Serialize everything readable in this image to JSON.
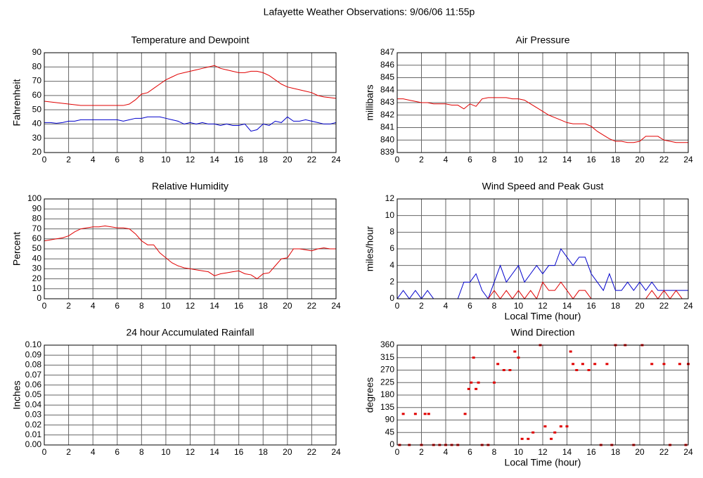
{
  "title": "Lafayette Weather Observations: 9/06/06 11:55p",
  "chart_data": [
    {
      "type": "line",
      "title": "Temperature and Dewpoint",
      "ylabel": "Fahrenheit",
      "x": [
        0,
        0.5,
        1,
        1.5,
        2,
        2.5,
        3,
        3.5,
        4,
        4.5,
        5,
        5.5,
        6,
        6.5,
        7,
        7.5,
        8,
        8.5,
        9,
        9.5,
        10,
        10.5,
        11,
        11.5,
        12,
        12.5,
        13,
        13.5,
        14,
        14.5,
        15,
        15.5,
        16,
        16.5,
        17,
        17.5,
        18,
        18.5,
        19,
        19.5,
        20,
        20.5,
        21,
        21.5,
        22,
        22.5,
        23,
        23.5,
        24
      ],
      "series": [
        {
          "color": "#e00000",
          "values": [
            56,
            55.5,
            55,
            54.5,
            54,
            53.5,
            53,
            53,
            53,
            53,
            53,
            53,
            53,
            53,
            54,
            57,
            61,
            62,
            65,
            68,
            71,
            73,
            75,
            76,
            77,
            78,
            79,
            80,
            81,
            79,
            78,
            77,
            76,
            76,
            77,
            77,
            76,
            74,
            71,
            68,
            66,
            65,
            64,
            63,
            62,
            60,
            59,
            58.5,
            58
          ]
        },
        {
          "color": "#0000cc",
          "values": [
            41,
            41,
            40.5,
            41,
            42,
            42,
            43,
            43,
            43,
            43,
            43,
            43,
            43,
            42,
            43,
            44,
            44,
            45,
            45,
            45,
            44,
            43,
            42,
            40,
            41,
            40,
            41,
            40,
            40,
            39,
            40,
            39,
            39,
            40,
            35,
            36,
            40,
            39,
            42,
            41,
            45,
            42,
            42,
            43,
            42,
            41,
            40,
            40,
            41
          ]
        }
      ],
      "xlim": [
        0,
        24
      ],
      "xticks": [
        0,
        2,
        4,
        6,
        8,
        10,
        12,
        14,
        16,
        18,
        20,
        22,
        24
      ],
      "ylim": [
        20,
        90
      ],
      "yticks": [
        20,
        30,
        40,
        50,
        60,
        70,
        80,
        90
      ],
      "grid": true
    },
    {
      "type": "line",
      "title": "Air Pressure",
      "ylabel": "millibars",
      "x": [
        0,
        0.5,
        1,
        1.5,
        2,
        2.5,
        3,
        3.5,
        4,
        4.5,
        5,
        5.5,
        6,
        6.5,
        7,
        7.5,
        8,
        8.5,
        9,
        9.5,
        10,
        10.5,
        11,
        11.5,
        12,
        12.5,
        13,
        13.5,
        14,
        14.5,
        15,
        15.5,
        16,
        16.5,
        17,
        17.5,
        18,
        18.5,
        19,
        19.5,
        20,
        20.5,
        21,
        21.5,
        22,
        22.5,
        23,
        23.5,
        24
      ],
      "series": [
        {
          "color": "#e00000",
          "values": [
            843.3,
            843.3,
            843.2,
            843.1,
            843.0,
            843.0,
            842.9,
            842.9,
            842.9,
            842.8,
            842.8,
            842.5,
            842.9,
            842.7,
            843.3,
            843.4,
            843.4,
            843.4,
            843.4,
            843.3,
            843.3,
            843.2,
            842.9,
            842.6,
            842.3,
            842.0,
            841.8,
            841.6,
            841.4,
            841.3,
            841.3,
            841.3,
            841.1,
            840.7,
            840.4,
            840.1,
            839.9,
            839.9,
            839.8,
            839.8,
            839.9,
            840.3,
            840.3,
            840.3,
            840.0,
            839.9,
            839.8,
            839.8,
            839.8
          ]
        }
      ],
      "xlim": [
        0,
        24
      ],
      "xticks": [
        0,
        2,
        4,
        6,
        8,
        10,
        12,
        14,
        16,
        18,
        20,
        22,
        24
      ],
      "ylim": [
        839,
        847
      ],
      "yticks": [
        839,
        840,
        841,
        842,
        843,
        844,
        845,
        846,
        847
      ],
      "grid": true
    },
    {
      "type": "line",
      "title": "Relative Humidity",
      "ylabel": "Percent",
      "x": [
        0,
        0.5,
        1,
        1.5,
        2,
        2.5,
        3,
        3.5,
        4,
        4.5,
        5,
        5.5,
        6,
        6.5,
        7,
        7.5,
        8,
        8.5,
        9,
        9.5,
        10,
        10.5,
        11,
        11.5,
        12,
        12.5,
        13,
        13.5,
        14,
        14.5,
        15,
        15.5,
        16,
        16.5,
        17,
        17.5,
        18,
        18.5,
        19,
        19.5,
        20,
        20.5,
        21,
        21.5,
        22,
        22.5,
        23,
        23.5,
        24
      ],
      "series": [
        {
          "color": "#e00000",
          "values": [
            58,
            59,
            60,
            61,
            63,
            67,
            70,
            71,
            72,
            72,
            73,
            72,
            71,
            71,
            70,
            65,
            58,
            54,
            54,
            46,
            41,
            36,
            33,
            31,
            30,
            29,
            28,
            27,
            23,
            25,
            26,
            27,
            28,
            25,
            24,
            20,
            25,
            26,
            33,
            40,
            41,
            50,
            50,
            49,
            48,
            50,
            51,
            50,
            50
          ]
        }
      ],
      "xlim": [
        0,
        24
      ],
      "xticks": [
        0,
        2,
        4,
        6,
        8,
        10,
        12,
        14,
        16,
        18,
        20,
        22,
        24
      ],
      "ylim": [
        0,
        100
      ],
      "yticks": [
        0,
        10,
        20,
        30,
        40,
        50,
        60,
        70,
        80,
        90,
        100
      ],
      "grid": true
    },
    {
      "type": "line",
      "title": "Wind Speed and Peak Gust",
      "ylabel": "miles/hour",
      "xlabel": "Local Time (hour)",
      "x": [
        0,
        0.5,
        1,
        1.5,
        2,
        2.5,
        3,
        3.5,
        4,
        4.5,
        5,
        5.5,
        6,
        6.5,
        7,
        7.5,
        8,
        8.5,
        9,
        9.5,
        10,
        10.5,
        11,
        11.5,
        12,
        12.5,
        13,
        13.5,
        14,
        14.5,
        15,
        15.5,
        16,
        16.5,
        17,
        17.5,
        18,
        18.5,
        19,
        19.5,
        20,
        20.5,
        21,
        21.5,
        22,
        22.5,
        23,
        23.5,
        24
      ],
      "series": [
        {
          "color": "#0000cc",
          "values": [
            0,
            1,
            0,
            1,
            0,
            1,
            0,
            0,
            0,
            0,
            0,
            2,
            2,
            3,
            1,
            0,
            2,
            4,
            2,
            3,
            4,
            2,
            3,
            4,
            3,
            4,
            4,
            6,
            5,
            4,
            5,
            5,
            3,
            2,
            1,
            3,
            1,
            1,
            2,
            1,
            2,
            1,
            2,
            1,
            1,
            1,
            1,
            1,
            1
          ]
        },
        {
          "color": "#e00000",
          "values": [
            0,
            0,
            0,
            0,
            0,
            0,
            0,
            0,
            0,
            0,
            0,
            0,
            0,
            0,
            0,
            0,
            1,
            0,
            1,
            0,
            1,
            0,
            1,
            0,
            2,
            1,
            1,
            2,
            1,
            0,
            1,
            1,
            0,
            0,
            0,
            0,
            0,
            0,
            0,
            0,
            0,
            0,
            1,
            0,
            1,
            0,
            1,
            0,
            0
          ]
        }
      ],
      "xlim": [
        0,
        24
      ],
      "xticks": [
        0,
        2,
        4,
        6,
        8,
        10,
        12,
        14,
        16,
        18,
        20,
        22,
        24
      ],
      "ylim": [
        0,
        12
      ],
      "yticks": [
        0,
        2,
        4,
        6,
        8,
        10,
        12
      ],
      "grid": true
    },
    {
      "type": "line",
      "title": "24 hour Accumulated Rainfall",
      "ylabel": "Inches",
      "x": [
        0,
        24
      ],
      "series": [
        {
          "color": "#e00000",
          "values": [
            0,
            0
          ]
        }
      ],
      "xlim": [
        0,
        24
      ],
      "xticks": [
        0,
        2,
        4,
        6,
        8,
        10,
        12,
        14,
        16,
        18,
        20,
        22,
        24
      ],
      "ylim": [
        0,
        0.1
      ],
      "yticks": [
        {
          "value": 0,
          "label": "0.00"
        },
        0.01,
        0.02,
        0.03,
        0.04,
        0.05,
        0.06,
        0.07,
        0.08,
        0.09,
        {
          "value": 0.1,
          "label": "0.10"
        }
      ],
      "grid": true
    },
    {
      "type": "scatter",
      "title": "Wind Direction",
      "ylabel": "degrees",
      "xlabel": "Local Time (hour)",
      "series": [
        {
          "color": "#e00000",
          "x": [
            0.2,
            0.5,
            1,
            1.5,
            2,
            2.3,
            2.6,
            3,
            3.5,
            4,
            4.5,
            5,
            5.6,
            5.9,
            6.1,
            6.3,
            6.5,
            6.7,
            7,
            7.5,
            8,
            8.3,
            8.8,
            9.3,
            9.7,
            10,
            10.3,
            10.8,
            11.2,
            11.8,
            12.2,
            12.7,
            13,
            13.5,
            14,
            14.3,
            14.5,
            14.8,
            15.3,
            15.8,
            16.3,
            16.8,
            17.3,
            17.7,
            18,
            18.8,
            19.5,
            20.2,
            21,
            22,
            22.5,
            23.3,
            23.8,
            24
          ],
          "values": [
            0,
            112,
            0,
            112,
            0,
            112,
            112,
            0,
            0,
            0,
            0,
            0,
            112,
            202,
            225,
            315,
            202,
            225,
            0,
            0,
            225,
            292,
            270,
            270,
            337,
            315,
            22,
            22,
            45,
            360,
            67,
            22,
            45,
            67,
            67,
            337,
            292,
            270,
            292,
            270,
            292,
            0,
            292,
            0,
            360,
            360,
            0,
            360,
            292,
            292,
            0,
            292,
            0,
            292
          ]
        }
      ],
      "xlim": [
        0,
        24
      ],
      "xticks": [
        0,
        2,
        4,
        6,
        8,
        10,
        12,
        14,
        16,
        18,
        20,
        22,
        24
      ],
      "ylim": [
        0,
        360
      ],
      "yticks": [
        0,
        45,
        90,
        135,
        180,
        225,
        270,
        315,
        360
      ],
      "grid": true
    }
  ]
}
